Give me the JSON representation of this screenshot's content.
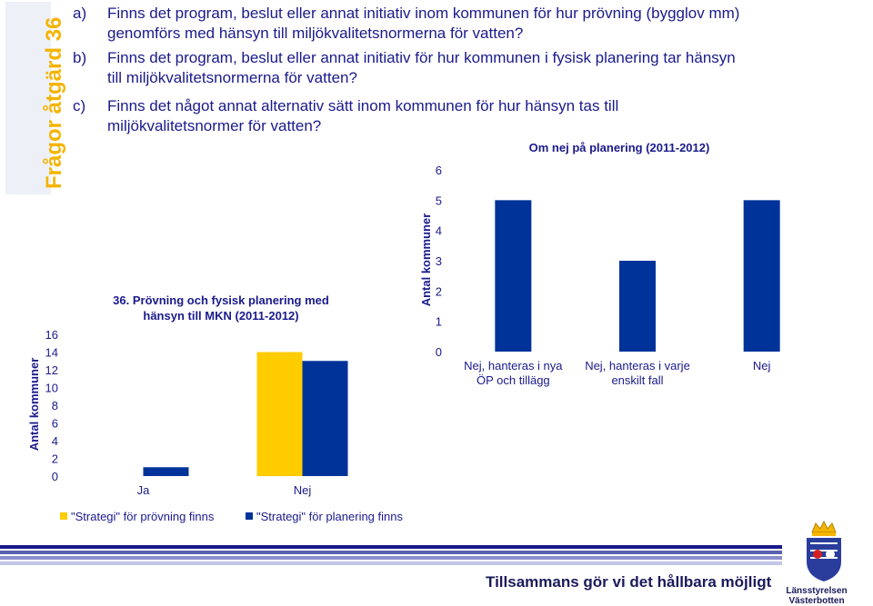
{
  "sidebar": {
    "title": "Frågor åtgärd 36"
  },
  "questions": [
    {
      "label": "a)",
      "line1": "Finns det program, beslut eller annat initiativ inom kommunen för hur prövning (bygglov mm)",
      "line2": "genomförs med hänsyn till miljökvalitetsnormerna för vatten?"
    },
    {
      "label": "b)",
      "line1": "Finns det program, beslut eller annat initiativ för hur kommunen i fysisk planering tar hänsyn",
      "line2": "till miljökvalitetsnormerna för vatten?"
    },
    {
      "label": "c)",
      "line1": "Finns det något annat alternativ sätt inom kommunen för hur hänsyn tas till",
      "line2": "miljökvalitetsnormer för vatten?"
    }
  ],
  "footer": {
    "tagline": "Tillsammans gör vi det hållbara möjligt",
    "logo_line1": "Länsstyrelsen",
    "logo_line2": "Västerbotten"
  },
  "colors": {
    "yellow": "#ffcc00",
    "blue": "#003399",
    "text": "#1a1a8c",
    "bar_light": "#b8bde0",
    "bar_dark": "#1a1a8c"
  },
  "chart_data": [
    {
      "type": "bar",
      "title": "36. Prövning och fysisk planering med hänsyn till MKN (2011-2012)",
      "title_line1": "36. Prövning och fysisk planering med",
      "title_line2": "hänsyn till MKN (2011-2012)",
      "ylabel": "Antal kommuner",
      "xlabel": "",
      "categories": [
        "Ja",
        "Nej"
      ],
      "ylim": [
        0,
        16
      ],
      "yticks": [
        "0",
        "2",
        "4",
        "6",
        "8",
        "10",
        "12",
        "14",
        "16"
      ],
      "series": [
        {
          "name": "\"Strategi\" för prövning finns",
          "color": "#ffcc00",
          "values": [
            0,
            14
          ]
        },
        {
          "name": "\"Strategi\" för planering finns",
          "color": "#003399",
          "values": [
            1,
            13
          ]
        }
      ],
      "legend": "bottom",
      "grid": false
    },
    {
      "type": "bar",
      "title": "Om nej på planering (2011-2012)",
      "ylabel": "Antal kommuner",
      "xlabel": "",
      "categories": [
        "Nej, hanteras i nya ÖP och tillägg",
        "Nej, hanteras i varje enskilt fall",
        "Nej"
      ],
      "category_lines": [
        [
          "Nej, hanteras i nya",
          "ÖP och tillägg"
        ],
        [
          "Nej, hanteras i varje",
          "enskilt fall"
        ],
        [
          "Nej"
        ]
      ],
      "values": [
        5,
        3,
        5
      ],
      "color": "#003399",
      "ylim": [
        0,
        6
      ],
      "yticks": [
        "0",
        "1",
        "2",
        "3",
        "4",
        "5",
        "6"
      ],
      "grid": false
    }
  ]
}
